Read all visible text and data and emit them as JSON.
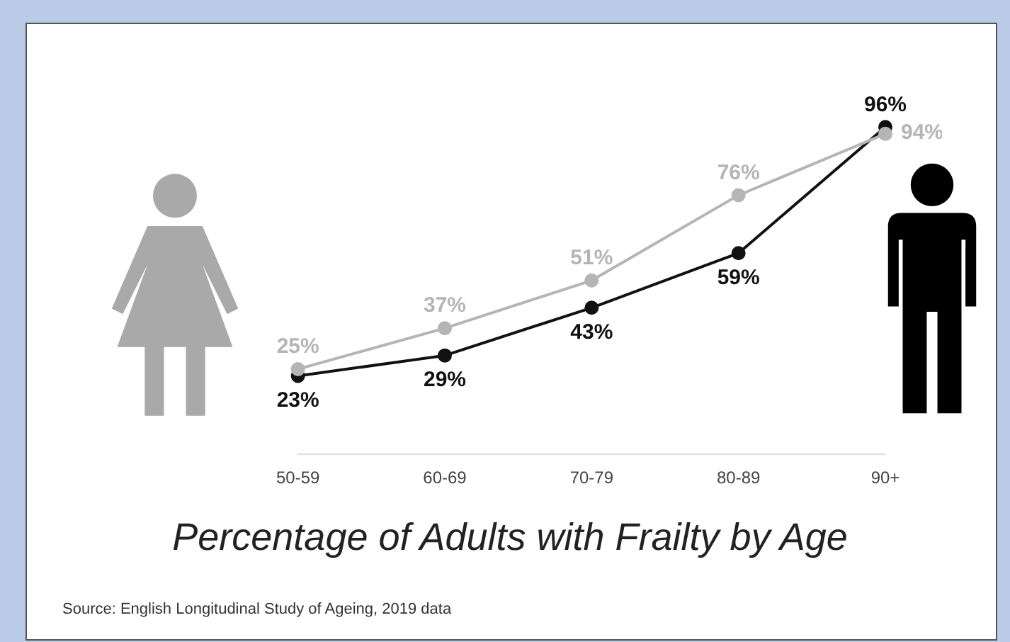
{
  "chart_data": {
    "type": "line",
    "title": "Percentage of Adults with Frailty by Age",
    "categories": [
      "50-59",
      "60-69",
      "70-79",
      "80-89",
      "90+"
    ],
    "series": [
      {
        "color": "#b5b5b5",
        "values": [
          25,
          37,
          51,
          76,
          94
        ],
        "value_labels": [
          "25%",
          "37%",
          "51%",
          "76%",
          "94%"
        ]
      },
      {
        "color": "#111111",
        "values": [
          23,
          29,
          43,
          59,
          96
        ],
        "value_labels": [
          "23%",
          "29%",
          "43%",
          "59%",
          "96%"
        ]
      }
    ],
    "legend": false,
    "grid": false,
    "marker": "circle",
    "line_style": "solid",
    "tick_labels": "x",
    "annotations": [
      "Source: English Longitudinal Study of Ageing, 2019 data"
    ]
  }
}
